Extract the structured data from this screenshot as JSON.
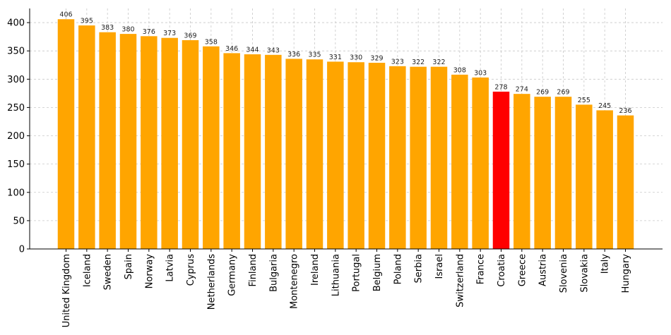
{
  "chart_data": {
    "type": "bar",
    "title": "",
    "xlabel": "",
    "ylabel": "",
    "ylim": [
      0,
      425
    ],
    "yticks": [
      0,
      50,
      100,
      150,
      200,
      250,
      300,
      350,
      400
    ],
    "grid": true,
    "legend": "none",
    "categories": [
      "United Kingdom",
      "Iceland",
      "Sweden",
      "Spain",
      "Norway",
      "Latvia",
      "Cyprus",
      "Netherlands",
      "Germany",
      "Finland",
      "Bulgaria",
      "Montenegro",
      "Ireland",
      "Lithuania",
      "Portugal",
      "Belgium",
      "Poland",
      "Serbia",
      "Israel",
      "Switzerland",
      "France",
      "Croatia",
      "Greece",
      "Austria",
      "Slovenia",
      "Slovakia",
      "Italy",
      "Hungary"
    ],
    "values": [
      406,
      395,
      383,
      380,
      376,
      373,
      369,
      358,
      346,
      344,
      343,
      336,
      335,
      331,
      330,
      329,
      323,
      322,
      322,
      308,
      303,
      278,
      274,
      269,
      269,
      255,
      245,
      236
    ],
    "highlight": "Croatia",
    "colors": {
      "default": "#FFA500",
      "highlight": "#FF0000"
    }
  }
}
